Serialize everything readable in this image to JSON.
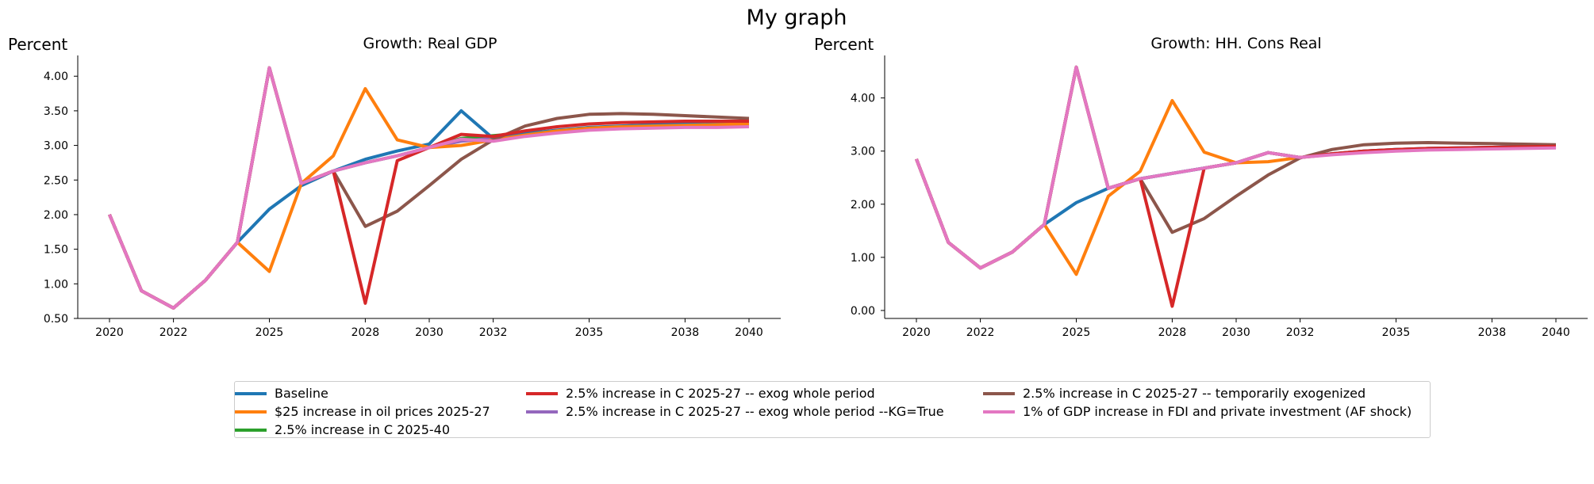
{
  "title": "My graph",
  "colors": {
    "baseline": "#1f77b4",
    "oil": "#ff7f0e",
    "c2540": "#2ca02c",
    "exog": "#d62728",
    "kg": "#9467bd",
    "temp": "#8c564b",
    "fdi": "#e377c2"
  },
  "legend": [
    {
      "key": "baseline",
      "label": "Baseline"
    },
    {
      "key": "oil",
      "label": "$25 increase in oil prices 2025-27"
    },
    {
      "key": "c2540",
      "label": "2.5% increase in C 2025-40"
    },
    {
      "key": "exog",
      "label": "2.5% increase in C 2025-27 -- exog whole period"
    },
    {
      "key": "kg",
      "label": "2.5% increase in C 2025-27 -- exog whole period --KG=True"
    },
    {
      "key": "temp",
      "label": "2.5% increase in C 2025-27 -- temporarily exogenized"
    },
    {
      "key": "fdi",
      "label": "1% of GDP increase in FDI and private investment (AF shock)"
    }
  ],
  "chart_data": [
    {
      "type": "line",
      "title": "Growth: Real GDP",
      "ylabel": "Percent",
      "xlim": [
        2020,
        2040
      ],
      "ylim": [
        0.5,
        4.3
      ],
      "xticks": [
        2020,
        2022,
        2025,
        2028,
        2030,
        2032,
        2035,
        2038,
        2040
      ],
      "yticks": [
        0.5,
        1.0,
        1.5,
        2.0,
        2.5,
        3.0,
        3.5,
        4.0
      ],
      "ytick_labels": [
        "0.50",
        "1.00",
        "1.50",
        "2.00",
        "2.50",
        "3.00",
        "3.50",
        "4.00"
      ],
      "x": [
        2020,
        2021,
        2022,
        2023,
        2024,
        2025,
        2026,
        2027,
        2028,
        2029,
        2030,
        2031,
        2032,
        2033,
        2034,
        2035,
        2036,
        2037,
        2038,
        2039,
        2040
      ],
      "series": [
        {
          "key": "c2540",
          "values": [
            2.0,
            0.9,
            0.65,
            1.05,
            1.6,
            4.12,
            2.45,
            2.63,
            2.75,
            2.85,
            2.97,
            3.1,
            3.14,
            3.18,
            3.21,
            3.24,
            3.26,
            3.27,
            3.28,
            3.29,
            3.3
          ]
        },
        {
          "key": "kg",
          "values": [
            2.0,
            0.9,
            0.65,
            1.05,
            1.6,
            4.12,
            2.45,
            2.63,
            2.75,
            2.85,
            2.97,
            3.06,
            3.1,
            3.15,
            3.19,
            3.23,
            3.26,
            3.28,
            3.3,
            3.31,
            3.32
          ]
        },
        {
          "key": "baseline",
          "values": [
            2.0,
            0.9,
            0.65,
            1.05,
            1.6,
            2.08,
            2.42,
            2.63,
            2.8,
            2.92,
            3.02,
            3.5,
            3.1,
            3.17,
            3.22,
            3.26,
            3.28,
            3.3,
            3.31,
            3.32,
            3.33
          ]
        },
        {
          "key": "oil",
          "values": [
            2.0,
            0.9,
            0.65,
            1.05,
            1.6,
            1.18,
            2.45,
            2.85,
            3.82,
            3.08,
            2.97,
            3.0,
            3.08,
            3.15,
            3.21,
            3.25,
            3.27,
            3.28,
            3.29,
            3.3,
            3.31
          ]
        },
        {
          "key": "temp",
          "values": [
            2.0,
            0.9,
            0.65,
            1.05,
            1.6,
            4.12,
            2.45,
            2.63,
            1.83,
            2.05,
            2.42,
            2.8,
            3.08,
            3.28,
            3.39,
            3.45,
            3.46,
            3.45,
            3.43,
            3.41,
            3.39
          ]
        },
        {
          "key": "exog",
          "values": [
            2.0,
            0.9,
            0.65,
            1.05,
            1.6,
            4.12,
            2.45,
            2.63,
            0.72,
            2.78,
            2.97,
            3.16,
            3.13,
            3.21,
            3.27,
            3.31,
            3.33,
            3.34,
            3.35,
            3.35,
            3.35
          ]
        },
        {
          "key": "fdi",
          "values": [
            2.0,
            0.9,
            0.65,
            1.05,
            1.6,
            4.12,
            2.45,
            2.63,
            2.75,
            2.85,
            2.97,
            3.09,
            3.06,
            3.13,
            3.18,
            3.22,
            3.24,
            3.25,
            3.26,
            3.26,
            3.27
          ]
        }
      ]
    },
    {
      "type": "line",
      "title": "Growth: HH. Cons Real",
      "ylabel": "Percent",
      "xlim": [
        2020,
        2040
      ],
      "ylim": [
        -0.15,
        4.8
      ],
      "xticks": [
        2020,
        2022,
        2025,
        2028,
        2030,
        2032,
        2035,
        2038,
        2040
      ],
      "yticks": [
        0.0,
        1.0,
        2.0,
        3.0,
        4.0
      ],
      "ytick_labels": [
        "0.00",
        "1.00",
        "2.00",
        "3.00",
        "4.00"
      ],
      "x": [
        2020,
        2021,
        2022,
        2023,
        2024,
        2025,
        2026,
        2027,
        2028,
        2029,
        2030,
        2031,
        2032,
        2033,
        2034,
        2035,
        2036,
        2037,
        2038,
        2039,
        2040
      ],
      "series": [
        {
          "key": "c2540",
          "values": [
            2.85,
            1.28,
            0.8,
            1.1,
            1.62,
            4.58,
            2.3,
            2.48,
            2.58,
            2.68,
            2.78,
            2.97,
            2.88,
            2.94,
            2.98,
            3.01,
            3.03,
            3.04,
            3.05,
            3.06,
            3.07
          ]
        },
        {
          "key": "kg",
          "values": [
            2.85,
            1.28,
            0.8,
            1.1,
            1.62,
            4.58,
            2.3,
            2.48,
            2.58,
            2.68,
            2.78,
            2.97,
            2.88,
            2.95,
            3.0,
            3.03,
            3.05,
            3.06,
            3.07,
            3.08,
            3.09
          ]
        },
        {
          "key": "baseline",
          "values": [
            2.85,
            1.28,
            0.8,
            1.1,
            1.62,
            2.03,
            2.3,
            2.48,
            2.58,
            2.68,
            2.78,
            2.97,
            2.88,
            2.95,
            3.0,
            3.03,
            3.05,
            3.06,
            3.07,
            3.08,
            3.09
          ]
        },
        {
          "key": "oil",
          "values": [
            2.85,
            1.28,
            0.8,
            1.1,
            1.62,
            0.68,
            2.15,
            2.62,
            3.95,
            2.98,
            2.78,
            2.8,
            2.88,
            2.94,
            2.99,
            3.02,
            3.04,
            3.05,
            3.06,
            3.06,
            3.07
          ]
        },
        {
          "key": "temp",
          "values": [
            2.85,
            1.28,
            0.8,
            1.1,
            1.62,
            4.58,
            2.3,
            2.48,
            1.47,
            1.73,
            2.15,
            2.55,
            2.87,
            3.03,
            3.12,
            3.15,
            3.16,
            3.15,
            3.14,
            3.13,
            3.12
          ]
        },
        {
          "key": "exog",
          "values": [
            2.85,
            1.28,
            0.8,
            1.1,
            1.62,
            4.58,
            2.3,
            2.48,
            0.08,
            2.68,
            2.78,
            2.97,
            2.88,
            2.95,
            3.0,
            3.03,
            3.05,
            3.06,
            3.07,
            3.08,
            3.09
          ]
        },
        {
          "key": "fdi",
          "values": [
            2.85,
            1.28,
            0.8,
            1.1,
            1.62,
            4.58,
            2.3,
            2.48,
            2.58,
            2.68,
            2.78,
            2.97,
            2.88,
            2.93,
            2.97,
            3.0,
            3.02,
            3.03,
            3.04,
            3.05,
            3.06
          ]
        }
      ]
    }
  ]
}
